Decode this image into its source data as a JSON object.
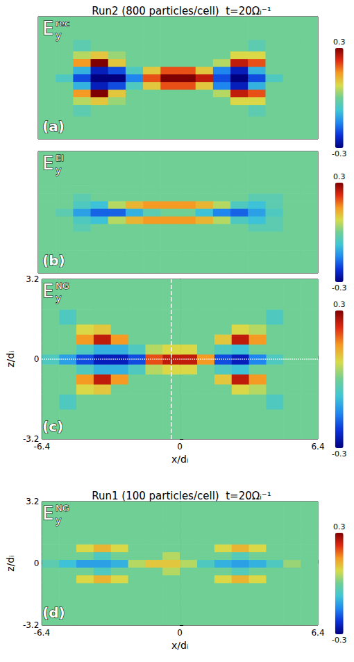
{
  "chart_data": [
    {
      "type": "heatmap",
      "title": "Run2 (800 particles/cell)  t=20Ωᵢ⁻¹",
      "field": {
        "symbol": "E",
        "subscript": "y",
        "superscript": "rec"
      },
      "panel": "(a)",
      "xlim": [
        -6.4,
        6.4
      ],
      "ylim": [
        -3.2,
        3.2
      ],
      "tick_labels": false,
      "x_edges": [
        -6.4,
        -5.6,
        -4.8,
        -4.0,
        -3.2,
        -2.4,
        -1.6,
        -0.8,
        0.0,
        0.8,
        1.6,
        2.4,
        3.2,
        4.0,
        4.8,
        5.6,
        6.4
      ],
      "z_edges": [
        -3.2,
        -2.0,
        -1.4,
        -1.0,
        -0.6,
        -0.2,
        0.2,
        0.6,
        1.0,
        1.4,
        2.0,
        3.2
      ],
      "cells": [
        [
          0,
          0,
          0,
          0,
          0,
          0,
          0,
          0,
          0,
          0,
          0,
          0,
          0,
          0,
          0,
          0
        ],
        [
          0,
          0,
          -0.03,
          0,
          0,
          0,
          0,
          0,
          0,
          0,
          0,
          0,
          -0.03,
          0,
          0,
          0
        ],
        [
          0,
          0,
          0.05,
          0.1,
          0.03,
          0,
          0,
          0,
          0,
          0,
          0,
          0.08,
          0.08,
          0,
          0,
          0
        ],
        [
          0,
          0,
          0.15,
          0.3,
          0.1,
          0,
          0,
          0,
          0,
          0,
          0.05,
          0.25,
          0.2,
          0,
          0,
          0
        ],
        [
          0,
          0,
          -0.1,
          -0.25,
          -0.2,
          -0.05,
          0.1,
          0.2,
          0.2,
          0.1,
          -0.15,
          -0.25,
          -0.1,
          0,
          0,
          0
        ],
        [
          0,
          -0.05,
          -0.2,
          -0.35,
          -0.35,
          -0.15,
          0.2,
          0.3,
          0.3,
          0.25,
          -0.2,
          -0.35,
          -0.2,
          -0.05,
          0,
          0
        ],
        [
          0,
          0,
          -0.1,
          -0.25,
          -0.2,
          -0.05,
          0.1,
          0.2,
          0.2,
          0.1,
          -0.15,
          -0.25,
          -0.1,
          0,
          0,
          0
        ],
        [
          0,
          0,
          0.15,
          0.3,
          0.1,
          0,
          0,
          0,
          0,
          0,
          0.05,
          0.25,
          0.2,
          0,
          0,
          0
        ],
        [
          0,
          0,
          0.05,
          0.1,
          0.03,
          0,
          0,
          0,
          0,
          0,
          0,
          0.08,
          0.08,
          0,
          0,
          0
        ],
        [
          0,
          0,
          -0.03,
          0,
          0,
          0,
          0,
          0,
          0,
          0,
          0,
          0,
          -0.03,
          0,
          0,
          0
        ],
        [
          0,
          0,
          0,
          0,
          0,
          0,
          0,
          0,
          0,
          0,
          0,
          0,
          0,
          0,
          0,
          0
        ]
      ],
      "colorbar": {
        "range": [
          -0.3,
          0.3
        ],
        "ticks": [
          -0.3,
          0.3
        ]
      }
    },
    {
      "type": "heatmap",
      "field": {
        "symbol": "E",
        "subscript": "y",
        "superscript": "EI"
      },
      "panel": "(b)",
      "xlim": [
        -6.4,
        6.4
      ],
      "ylim": [
        -3.2,
        3.2
      ],
      "tick_labels": false,
      "x_edges": [
        -6.4,
        -5.6,
        -4.8,
        -4.0,
        -3.2,
        -2.4,
        -1.6,
        -0.8,
        0.0,
        0.8,
        1.6,
        2.4,
        3.2,
        4.0,
        4.8,
        5.6,
        6.4
      ],
      "z_edges": [
        -3.2,
        -2.0,
        -1.4,
        -1.0,
        -0.6,
        -0.2,
        0.2,
        0.6,
        1.0,
        1.4,
        2.0,
        3.2
      ],
      "cells": [
        [
          0,
          0,
          0,
          0,
          0,
          0,
          0,
          0,
          0,
          0,
          0,
          0,
          0,
          0,
          0,
          0
        ],
        [
          0,
          0,
          0,
          0,
          0,
          0,
          0,
          0,
          0,
          0,
          0,
          0,
          0,
          0,
          0,
          0
        ],
        [
          0,
          0,
          0,
          0,
          0,
          0,
          0,
          0,
          0,
          0,
          0,
          0,
          0,
          0,
          0,
          0
        ],
        [
          0,
          0,
          -0.03,
          0,
          0,
          0,
          0,
          0,
          0,
          0,
          0,
          0,
          -0.03,
          -0.03,
          0,
          0
        ],
        [
          0,
          0,
          -0.05,
          -0.08,
          0.05,
          0.12,
          0.15,
          0.15,
          0.15,
          0.12,
          0.05,
          -0.05,
          -0.08,
          -0.03,
          0,
          0
        ],
        [
          0,
          -0.03,
          -0.12,
          -0.18,
          -0.18,
          -0.1,
          -0.03,
          0,
          0,
          -0.08,
          -0.15,
          -0.18,
          -0.12,
          -0.05,
          0,
          0
        ],
        [
          0,
          0,
          -0.05,
          -0.08,
          0.05,
          0.12,
          0.15,
          0.15,
          0.15,
          0.12,
          0.05,
          -0.05,
          -0.08,
          -0.03,
          0,
          0
        ],
        [
          0,
          0,
          -0.03,
          0,
          0,
          0,
          0,
          0,
          0,
          0,
          0,
          0,
          -0.03,
          -0.03,
          0,
          0
        ],
        [
          0,
          0,
          0,
          0,
          0,
          0,
          0,
          0,
          0,
          0,
          0,
          0,
          0,
          0,
          0,
          0
        ],
        [
          0,
          0,
          0,
          0,
          0,
          0,
          0,
          0,
          0,
          0,
          0,
          0,
          0,
          0,
          0,
          0
        ],
        [
          0,
          0,
          0,
          0,
          0,
          0,
          0,
          0,
          0,
          0,
          0,
          0,
          0,
          0,
          0,
          0
        ]
      ],
      "colorbar": {
        "range": [
          -0.3,
          0.3
        ],
        "ticks": [
          -0.3,
          0.3
        ]
      }
    },
    {
      "type": "heatmap",
      "field": {
        "symbol": "E",
        "subscript": "y",
        "superscript": "NG"
      },
      "panel": "(c)",
      "xlim": [
        -6.4,
        6.4
      ],
      "ylim": [
        -3.2,
        3.2
      ],
      "xticks": [
        -6.4,
        0,
        6.4
      ],
      "yticks": [
        -3.2,
        0,
        3.2
      ],
      "xlabel": "x/dᵢ",
      "ylabel": "z/dᵢ",
      "x_edges": [
        -6.4,
        -5.6,
        -4.8,
        -4.0,
        -3.2,
        -2.4,
        -1.6,
        -0.8,
        0.0,
        0.8,
        1.6,
        2.4,
        3.2,
        4.0,
        4.8,
        5.6,
        6.4
      ],
      "z_edges": [
        -3.2,
        -2.0,
        -1.4,
        -1.0,
        -0.6,
        -0.2,
        0.2,
        0.6,
        1.0,
        1.4,
        2.0,
        3.2
      ],
      "cells": [
        [
          0,
          0,
          0,
          0,
          0,
          0,
          0,
          0,
          0,
          0,
          0,
          0,
          0,
          0,
          0,
          0
        ],
        [
          0,
          -0.05,
          0,
          0,
          0,
          0,
          0,
          0,
          0,
          0,
          0,
          0,
          0,
          -0.05,
          0,
          0
        ],
        [
          0,
          0,
          0.08,
          0.1,
          0,
          0,
          0,
          0,
          0,
          0,
          0,
          0.08,
          0.05,
          0,
          0,
          0
        ],
        [
          0,
          0,
          0.15,
          0.25,
          0.15,
          0,
          0,
          0,
          0,
          0,
          0.1,
          0.25,
          0.15,
          0,
          0,
          0
        ],
        [
          0,
          0,
          -0.05,
          -0.1,
          -0.1,
          -0.05,
          0.05,
          0.08,
          0.08,
          0,
          -0.05,
          -0.08,
          0,
          0,
          0,
          0
        ],
        [
          -0.05,
          -0.12,
          -0.2,
          -0.25,
          -0.25,
          -0.2,
          0.2,
          0.25,
          0.25,
          0.15,
          -0.2,
          -0.25,
          -0.15,
          -0.05,
          0,
          0
        ],
        [
          0,
          0,
          -0.05,
          -0.1,
          -0.1,
          -0.05,
          0.05,
          0.08,
          0.08,
          0,
          -0.05,
          -0.08,
          0,
          0,
          0,
          0
        ],
        [
          0,
          0,
          0.15,
          0.25,
          0.15,
          0,
          0,
          0,
          0,
          0,
          0.1,
          0.25,
          0.15,
          0,
          0,
          0
        ],
        [
          0,
          0,
          0.08,
          0.1,
          0,
          0,
          0,
          0,
          0,
          0,
          0,
          0.08,
          0.05,
          0,
          0,
          0
        ],
        [
          0,
          -0.05,
          0,
          0,
          0,
          0,
          0,
          0,
          0,
          0,
          0,
          0,
          0,
          -0.05,
          0,
          0
        ],
        [
          0,
          0,
          0,
          0,
          0,
          0,
          0,
          0,
          0,
          0,
          0,
          0,
          0,
          0,
          0,
          0
        ]
      ],
      "reference_lines": {
        "x": -0.4,
        "z": 0
      },
      "colorbar": {
        "range": [
          -0.3,
          0.3
        ],
        "ticks": [
          -0.3,
          0.3
        ]
      }
    },
    {
      "type": "heatmap",
      "title": "Run1 (100 particles/cell)  t=20Ωᵢ⁻¹",
      "field": {
        "symbol": "E",
        "subscript": "y",
        "superscript": "NG"
      },
      "panel": "(d)",
      "xlim": [
        -6.4,
        6.4
      ],
      "ylim": [
        -3.2,
        3.2
      ],
      "xticks": [
        -6.4,
        0,
        6.4
      ],
      "yticks": [
        -3.2,
        0,
        3.2
      ],
      "xlabel": "x/dᵢ",
      "ylabel": "z/dᵢ",
      "x_edges": [
        -6.4,
        -5.6,
        -4.8,
        -4.0,
        -3.2,
        -2.4,
        -1.6,
        -0.8,
        0.0,
        0.8,
        1.6,
        2.4,
        3.2,
        4.0,
        4.8,
        5.6,
        6.4
      ],
      "z_edges": [
        -3.2,
        -2.0,
        -1.4,
        -1.0,
        -0.6,
        -0.2,
        0.2,
        0.6,
        1.0,
        1.4,
        2.0,
        3.2
      ],
      "cells": [
        [
          0,
          0,
          0,
          0,
          0,
          0,
          0,
          0,
          0,
          0,
          0,
          0,
          0,
          0,
          0,
          0
        ],
        [
          0,
          0,
          0,
          0,
          0,
          0,
          0,
          0,
          0,
          0,
          0,
          0,
          0,
          0,
          0,
          0
        ],
        [
          0,
          0,
          0,
          0,
          0,
          0,
          0,
          0,
          0,
          0,
          0,
          0,
          0,
          0,
          0,
          0
        ],
        [
          0,
          0,
          0.08,
          0.12,
          0.08,
          0,
          0,
          0,
          0,
          0,
          0.08,
          0.12,
          0.08,
          0,
          0,
          0
        ],
        [
          0,
          0,
          0,
          -0.05,
          0,
          0,
          0,
          0.05,
          0,
          0,
          0,
          -0.04,
          0,
          0,
          0,
          0
        ],
        [
          -0.03,
          -0.08,
          -0.12,
          -0.12,
          -0.1,
          0.05,
          0.1,
          0.1,
          0.05,
          -0.05,
          -0.1,
          -0.12,
          -0.1,
          -0.05,
          0.03,
          0
        ],
        [
          0,
          0,
          0,
          -0.05,
          0,
          0,
          0,
          0.05,
          0,
          0,
          0,
          -0.04,
          0,
          0,
          0,
          0
        ],
        [
          0,
          0,
          0.08,
          0.12,
          0.08,
          0,
          0,
          0,
          0,
          0,
          0.08,
          0.12,
          0.08,
          0,
          0,
          0
        ],
        [
          0,
          0,
          0,
          0,
          0,
          0,
          0,
          0,
          0,
          0,
          0,
          0,
          0,
          0,
          0,
          0
        ],
        [
          0,
          0,
          0,
          0,
          0,
          0,
          0,
          0,
          0,
          0,
          0,
          0,
          0,
          0,
          0,
          0
        ],
        [
          0,
          0,
          0,
          0,
          0,
          0,
          0,
          0,
          0,
          0,
          0,
          0,
          0,
          0,
          0,
          0
        ]
      ],
      "colorbar": {
        "range": [
          -0.3,
          0.3
        ],
        "ticks": [
          -0.3,
          0.3
        ]
      }
    }
  ]
}
